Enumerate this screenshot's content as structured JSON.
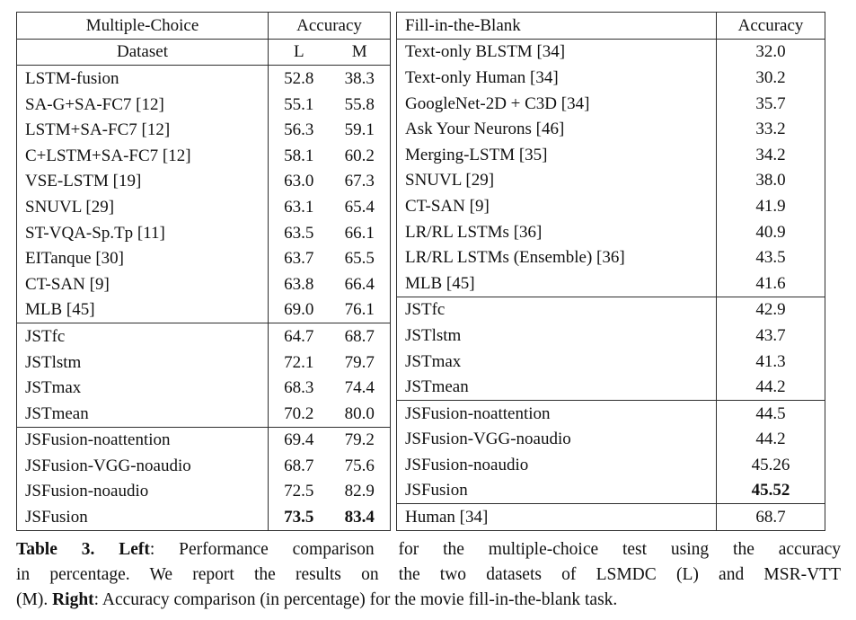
{
  "left_table": {
    "title": "Multiple-Choice",
    "accuracy_label": "Accuracy",
    "dataset_label": "Dataset",
    "col_l": "L",
    "col_m": "M",
    "sections": [
      {
        "rows": [
          {
            "name": "LSTM-fusion",
            "l": "52.8",
            "m": "38.3"
          },
          {
            "name": "SA-G+SA-FC7 [12]",
            "l": "55.1",
            "m": "55.8"
          },
          {
            "name": "LSTM+SA-FC7 [12]",
            "l": "56.3",
            "m": "59.1"
          },
          {
            "name": "C+LSTM+SA-FC7 [12]",
            "l": "58.1",
            "m": "60.2"
          },
          {
            "name": "VSE-LSTM [19]",
            "l": "63.0",
            "m": "67.3"
          },
          {
            "name": "SNUVL [29]",
            "l": "63.1",
            "m": "65.4"
          },
          {
            "name": "ST-VQA-Sp.Tp [11]",
            "l": "63.5",
            "m": "66.1"
          },
          {
            "name": "EITanque [30]",
            "l": "63.7",
            "m": "65.5"
          },
          {
            "name": "CT-SAN [9]",
            "l": "63.8",
            "m": "66.4"
          },
          {
            "name": "MLB [45]",
            "l": "69.0",
            "m": "76.1"
          }
        ]
      },
      {
        "rows": [
          {
            "name": "JSTfc",
            "l": "64.7",
            "m": "68.7"
          },
          {
            "name": "JSTlstm",
            "l": "72.1",
            "m": "79.7"
          },
          {
            "name": "JSTmax",
            "l": "68.3",
            "m": "74.4"
          },
          {
            "name": "JSTmean",
            "l": "70.2",
            "m": "80.0"
          }
        ]
      },
      {
        "rows": [
          {
            "name": "JSFusion-noattention",
            "l": "69.4",
            "m": "79.2"
          },
          {
            "name": "JSFusion-VGG-noaudio",
            "l": "68.7",
            "m": "75.6"
          },
          {
            "name": "JSFusion-noaudio",
            "l": "72.5",
            "m": "82.9"
          },
          {
            "name": "JSFusion",
            "l": "73.5",
            "m": "83.4",
            "bold": true
          }
        ]
      }
    ]
  },
  "right_table": {
    "title": "Fill-in-the-Blank",
    "accuracy_label": "Accuracy",
    "sections": [
      {
        "rows": [
          {
            "name": "Text-only BLSTM [34]",
            "value": "32.0"
          },
          {
            "name": "Text-only Human [34]",
            "value": "30.2"
          },
          {
            "name": "GoogleNet-2D + C3D [34]",
            "value": "35.7"
          },
          {
            "name": "Ask Your Neurons [46]",
            "value": "33.2"
          },
          {
            "name": "Merging-LSTM [35]",
            "value": "34.2"
          },
          {
            "name": "SNUVL [29]",
            "value": "38.0"
          },
          {
            "name": "CT-SAN [9]",
            "value": "41.9"
          },
          {
            "name": "LR/RL LSTMs [36]",
            "value": "40.9"
          },
          {
            "name": "LR/RL LSTMs (Ensemble) [36]",
            "value": "43.5"
          },
          {
            "name": "MLB [45]",
            "value": "41.6"
          }
        ]
      },
      {
        "rows": [
          {
            "name": "JSTfc",
            "value": "42.9"
          },
          {
            "name": "JSTlstm",
            "value": "43.7"
          },
          {
            "name": "JSTmax",
            "value": "41.3"
          },
          {
            "name": "JSTmean",
            "value": "44.2"
          }
        ]
      },
      {
        "rows": [
          {
            "name": "JSFusion-noattention",
            "value": "44.5"
          },
          {
            "name": "JSFusion-VGG-noaudio",
            "value": "44.2"
          },
          {
            "name": "JSFusion-noaudio",
            "value": "45.26"
          },
          {
            "name": "JSFusion",
            "value": "45.52",
            "bold": true
          }
        ]
      },
      {
        "rows": [
          {
            "name": "Human [34]",
            "value": "68.7"
          }
        ]
      }
    ]
  },
  "caption": {
    "lines": [
      {
        "justify_last": true,
        "segments": [
          {
            "text": "Table 3.",
            "bold": true
          },
          {
            "text": " ",
            "bold": false
          },
          {
            "text": "Left",
            "bold": true
          },
          {
            "text": ": Performance comparison for the multiple-choice test using the accuracy",
            "bold": false
          }
        ]
      },
      {
        "justify_last": true,
        "segments": [
          {
            "text": "in percentage. We report the results on the two datasets of LSMDC (L) and MSR-VTT",
            "bold": false
          }
        ]
      },
      {
        "justify_last": false,
        "segments": [
          {
            "text": "(M). ",
            "bold": false
          },
          {
            "text": "Right",
            "bold": true
          },
          {
            "text": ": Accuracy comparison (in percentage) for the movie fill-in-the-blank task.",
            "bold": false
          }
        ]
      }
    ]
  }
}
